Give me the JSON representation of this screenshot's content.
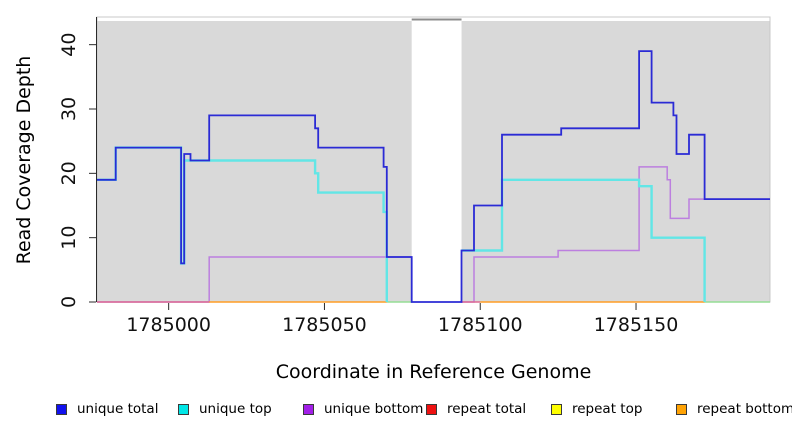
{
  "chart_data": {
    "type": "line",
    "subtype": "step-coverage-plot",
    "title": "",
    "xlabel": "Coordinate in Reference Genome",
    "ylabel": "Read Coverage Depth",
    "xlim": [
      1784977,
      1785193
    ],
    "ylim": [
      0,
      44.3
    ],
    "xticks": [
      1785000,
      1785050,
      1785100,
      1785150
    ],
    "yticks": [
      0,
      10,
      20,
      30,
      40
    ],
    "grid": false,
    "legend_position": "bottom",
    "plot_bg_color": "#d9d9d9",
    "border_color": "#c8c8c8",
    "axis_color": "#2a2a2a",
    "tick_label_color": "#111111",
    "no_data_gap": {
      "start": 1785078,
      "end": 1785094,
      "fill": "#ffffff",
      "top_marker_color": "#8c8c8c"
    },
    "draw_order": [
      2,
      3,
      5,
      4,
      1,
      0
    ],
    "series": [
      {
        "name": "unique total",
        "legend_color": "#1111ee",
        "line_color": "#2b2bd5",
        "line_width": 1.8,
        "segments": [
          {
            "end": 1785193,
            "points": [
              [
                1784977,
                19
              ],
              [
                1784983,
                24
              ],
              [
                1785004,
                6
              ],
              [
                1785005,
                23
              ],
              [
                1785007,
                22
              ],
              [
                1785013,
                29
              ],
              [
                1785047,
                27
              ],
              [
                1785048,
                24
              ],
              [
                1785069,
                21
              ],
              [
                1785070,
                7
              ],
              [
                1785078,
                0
              ],
              [
                1785094,
                8
              ],
              [
                1785098,
                15
              ],
              [
                1785107,
                26
              ],
              [
                1785126,
                27
              ],
              [
                1785151,
                39
              ],
              [
                1785155,
                31
              ],
              [
                1785162,
                29
              ],
              [
                1785163,
                23
              ],
              [
                1785167,
                26
              ],
              [
                1785172,
                16
              ]
            ]
          }
        ]
      },
      {
        "name": "unique top",
        "legend_color": "#00e6e6",
        "line_color": "#62e6e6",
        "line_width": 2.4,
        "segments": [
          {
            "end": 1785070,
            "points": [
              [
                1784977,
                19
              ],
              [
                1784983,
                24
              ],
              [
                1785004,
                6
              ],
              [
                1785005,
                22
              ],
              [
                1785047,
                20
              ],
              [
                1785048,
                17
              ],
              [
                1785069,
                14
              ],
              [
                1785070,
                0
              ]
            ]
          },
          {
            "end": 1785172,
            "points": [
              [
                1785094,
                8
              ],
              [
                1785107,
                19
              ],
              [
                1785151,
                18
              ],
              [
                1785155,
                10
              ],
              [
                1785172,
                0
              ]
            ]
          }
        ]
      },
      {
        "name": "unique bottom",
        "legend_color": "#a21fe8",
        "line_color": "#bc7fdf",
        "line_width": 1.5,
        "segments": [
          {
            "end": 1785078,
            "points": [
              [
                1784977,
                0
              ],
              [
                1785013,
                7
              ]
            ]
          },
          {
            "end": 1785193,
            "points": [
              [
                1785094,
                0
              ],
              [
                1785098,
                7
              ],
              [
                1785125,
                8
              ],
              [
                1785151,
                21
              ],
              [
                1785160,
                19
              ],
              [
                1785161,
                13
              ],
              [
                1785167,
                16
              ]
            ]
          }
        ]
      },
      {
        "name": "repeat total",
        "legend_color": "#ee1111",
        "line_color": "#dd6b93",
        "line_width": 1.6,
        "segments": [
          {
            "end": 1785013,
            "points": [
              [
                1784977,
                0
              ]
            ]
          },
          {
            "end": 1785100,
            "points": [
              [
                1785094,
                0
              ]
            ]
          }
        ]
      },
      {
        "name": "repeat top",
        "legend_color": "#ffff00",
        "line_color": "#95dd95",
        "line_width": 1.6,
        "segments": [
          {
            "end": 1785078,
            "points": [
              [
                1785070,
                0
              ]
            ]
          },
          {
            "end": 1785193,
            "points": [
              [
                1785172,
                0
              ]
            ]
          }
        ]
      },
      {
        "name": "repeat bottom",
        "legend_color": "#ffa305",
        "line_color": "#ff9d26",
        "line_width": 1.6,
        "segments": [
          {
            "end": 1785070,
            "points": [
              [
                1785013,
                0
              ]
            ]
          },
          {
            "end": 1785172,
            "points": [
              [
                1785100,
                0
              ]
            ]
          }
        ]
      }
    ]
  }
}
